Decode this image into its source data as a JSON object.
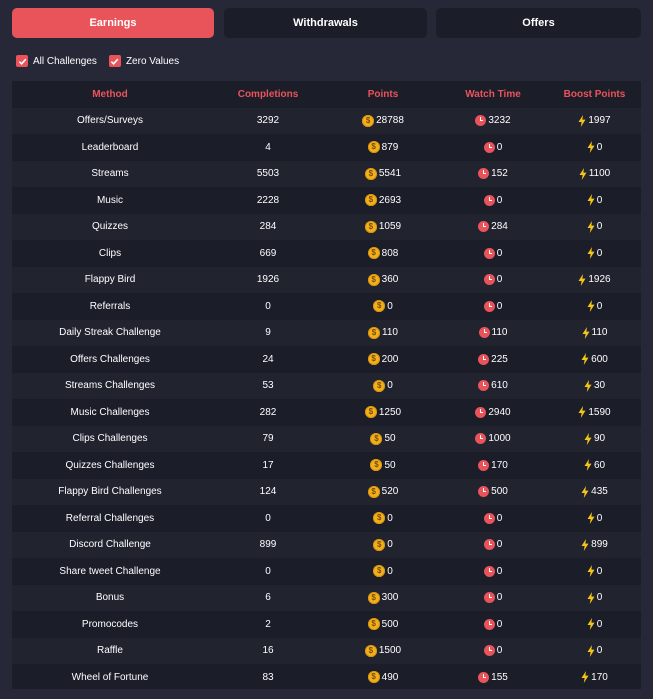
{
  "tabs": [
    {
      "label": "Earnings",
      "active": true
    },
    {
      "label": "Withdrawals",
      "active": false
    },
    {
      "label": "Offers",
      "active": false
    }
  ],
  "filters": [
    {
      "label": "All Challenges",
      "checked": true
    },
    {
      "label": "Zero Values",
      "checked": true
    }
  ],
  "table": {
    "headers": [
      "Method",
      "Completions",
      "Points",
      "Watch Time",
      "Boost Points"
    ],
    "rows": [
      [
        "Offers/Surveys",
        "3292",
        "28788",
        "3232",
        "1997"
      ],
      [
        "Leaderboard",
        "4",
        "879",
        "0",
        "0"
      ],
      [
        "Streams",
        "5503",
        "5541",
        "152",
        "1100"
      ],
      [
        "Music",
        "2228",
        "2693",
        "0",
        "0"
      ],
      [
        "Quizzes",
        "284",
        "1059",
        "284",
        "0"
      ],
      [
        "Clips",
        "669",
        "808",
        "0",
        "0"
      ],
      [
        "Flappy Bird",
        "1926",
        "360",
        "0",
        "1926"
      ],
      [
        "Referrals",
        "0",
        "0",
        "0",
        "0"
      ],
      [
        "Daily Streak Challenge",
        "9",
        "110",
        "110",
        "110"
      ],
      [
        "Offers Challenges",
        "24",
        "200",
        "225",
        "600"
      ],
      [
        "Streams Challenges",
        "53",
        "0",
        "610",
        "30"
      ],
      [
        "Music Challenges",
        "282",
        "1250",
        "2940",
        "1590"
      ],
      [
        "Clips Challenges",
        "79",
        "50",
        "1000",
        "90"
      ],
      [
        "Quizzes Challenges",
        "17",
        "50",
        "170",
        "60"
      ],
      [
        "Flappy Bird Challenges",
        "124",
        "520",
        "500",
        "435"
      ],
      [
        "Referral Challenges",
        "0",
        "0",
        "0",
        "0"
      ],
      [
        "Discord Challenge",
        "899",
        "0",
        "0",
        "899"
      ],
      [
        "Share tweet Challenge",
        "0",
        "0",
        "0",
        "0"
      ],
      [
        "Bonus",
        "6",
        "300",
        "0",
        "0"
      ],
      [
        "Promocodes",
        "2",
        "500",
        "0",
        "0"
      ],
      [
        "Raffle",
        "16",
        "1500",
        "0",
        "0"
      ],
      [
        "Wheel of Fortune",
        "83",
        "490",
        "155",
        "170"
      ]
    ]
  },
  "icons": {
    "points": "coin-icon",
    "watch_time": "clock-icon",
    "boost": "bolt-icon"
  },
  "colors": {
    "accent": "#e9545b",
    "coin": "#f2b01e",
    "bolt": "#f5c518",
    "background": "#262837",
    "panel": "#1b1d29"
  }
}
